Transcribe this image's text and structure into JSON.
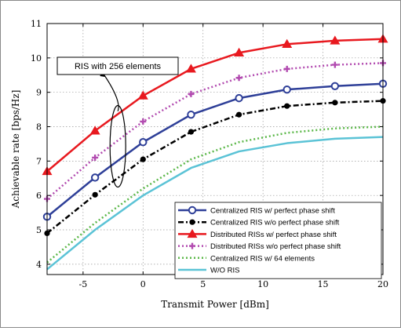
{
  "chart_data": {
    "type": "line",
    "title": "",
    "xlabel": "Transmit Power [dBm]",
    "ylabel": "Achievable rate [bps/Hz]",
    "xlim": [
      -8,
      20
    ],
    "ylim": [
      3.7,
      11
    ],
    "xticks": [
      -5,
      0,
      5,
      10,
      15,
      20
    ],
    "yticks": [
      4,
      5,
      6,
      7,
      8,
      9,
      10,
      11
    ],
    "grid": true,
    "legend_position": "bottom-right",
    "x": [
      -8,
      -4,
      0,
      4,
      8,
      12,
      16,
      20
    ],
    "series": [
      {
        "name": "Centralized RIS w/ perfect phase shift",
        "color": "#2e3f98",
        "line_style": "solid",
        "marker": "circle",
        "values": [
          5.38,
          6.52,
          7.55,
          8.35,
          8.83,
          9.08,
          9.18,
          9.25
        ]
      },
      {
        "name": "Centralized RIS w/o perfect phase shift",
        "color": "#000000",
        "line_style": "dashdot",
        "marker": "dot",
        "values": [
          4.9,
          6.02,
          7.05,
          7.85,
          8.35,
          8.6,
          8.7,
          8.75
        ]
      },
      {
        "name": "Distributed RISs w/ perfect phase shift",
        "color": "#e8191f",
        "line_style": "solid",
        "marker": "triangle",
        "values": [
          6.7,
          7.88,
          8.9,
          9.68,
          10.15,
          10.4,
          10.5,
          10.55
        ]
      },
      {
        "name": "Distributed RISs w/o perfect phase shift",
        "color": "#b24bb0",
        "line_style": "dotted",
        "marker": "plus",
        "values": [
          5.9,
          7.1,
          8.15,
          8.95,
          9.42,
          9.68,
          9.8,
          9.85
        ]
      },
      {
        "name": "Centralized RIS w/ 64 elements",
        "color": "#5cb84a",
        "line_style": "dotted",
        "marker": "none",
        "values": [
          4.05,
          5.2,
          6.2,
          7.05,
          7.55,
          7.82,
          7.95,
          8.0
        ]
      },
      {
        "name": "W/O RIS",
        "color": "#5bc3d6",
        "line_style": "solid",
        "marker": "none",
        "values": [
          3.85,
          5.0,
          6.0,
          6.8,
          7.28,
          7.52,
          7.65,
          7.7
        ]
      }
    ],
    "annotation": {
      "text": "RIS with 256 elements"
    }
  }
}
